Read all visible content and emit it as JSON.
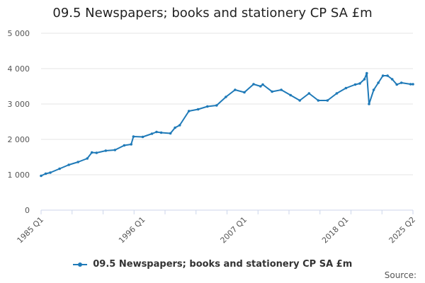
{
  "chart_data": {
    "type": "line",
    "title": "09.5 Newspapers; books and stationery CP SA £m",
    "xlabel": "",
    "ylabel": "",
    "ylim": [
      0,
      5000
    ],
    "yticks": [
      0,
      1000,
      2000,
      3000,
      4000,
      5000
    ],
    "ytick_labels": [
      "0",
      "1 000",
      "2 000",
      "3 000",
      "4 000",
      "5 000"
    ],
    "xlim": [
      1985.0,
      2025.25
    ],
    "xticks": [
      1985.0,
      1996.0,
      2007.0,
      2018.0,
      2025.25
    ],
    "xtick_labels": [
      "1985 Q1",
      "1996 Q1",
      "2007 Q1",
      "2018 Q1",
      "2025 Q2"
    ],
    "grid": true,
    "legend_position": "bottom",
    "series": [
      {
        "name": "09.5 Newspapers; books and stationery CP SA £m",
        "color": "#1f7ab8",
        "x": [
          1985.0,
          1985.5,
          1986.0,
          1987.0,
          1988.0,
          1989.0,
          1990.0,
          1990.5,
          1991.0,
          1992.0,
          1993.0,
          1994.0,
          1994.75,
          1995.0,
          1996.0,
          1997.0,
          1997.5,
          1998.0,
          1999.0,
          1999.5,
          2000.0,
          2001.0,
          2002.0,
          2003.0,
          2004.0,
          2005.0,
          2006.0,
          2007.0,
          2008.0,
          2008.75,
          2009.0,
          2010.0,
          2011.0,
          2012.0,
          2013.0,
          2014.0,
          2015.0,
          2016.0,
          2017.0,
          2018.0,
          2019.0,
          2019.5,
          2020.0,
          2020.25,
          2020.5,
          2021.0,
          2021.5,
          2022.0,
          2022.5,
          2023.0,
          2023.5,
          2024.0,
          2025.0,
          2025.25
        ],
        "values": [
          970,
          1030,
          1060,
          1170,
          1280,
          1360,
          1460,
          1630,
          1620,
          1680,
          1700,
          1830,
          1860,
          2080,
          2070,
          2160,
          2210,
          2190,
          2170,
          2330,
          2400,
          2800,
          2850,
          2930,
          2960,
          3200,
          3400,
          3330,
          3560,
          3500,
          3550,
          3350,
          3400,
          3250,
          3100,
          3300,
          3100,
          3100,
          3300,
          3450,
          3550,
          3580,
          3700,
          3870,
          3000,
          3400,
          3600,
          3800,
          3800,
          3700,
          3550,
          3600,
          3560,
          3560
        ]
      }
    ]
  },
  "source": {
    "label": "Source:"
  }
}
